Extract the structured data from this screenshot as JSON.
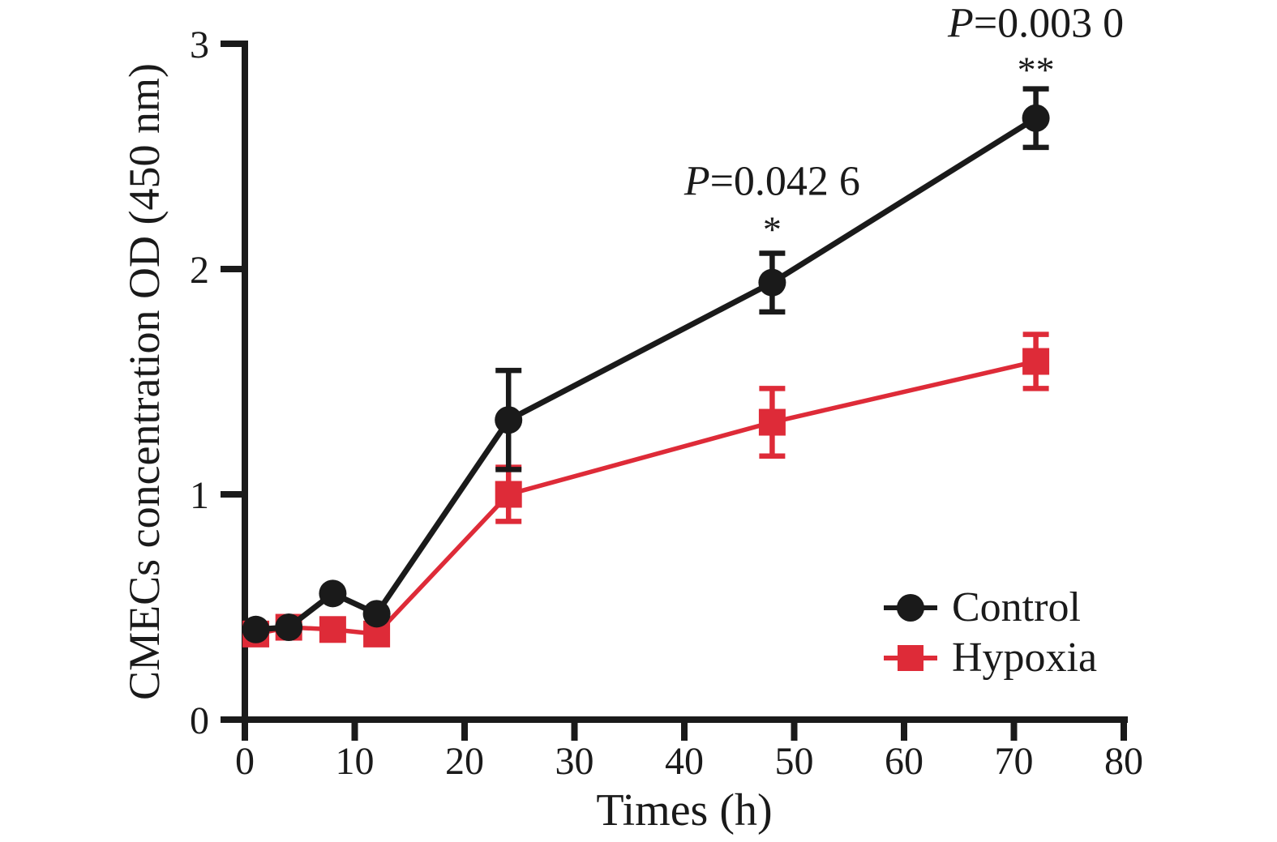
{
  "figure": {
    "background": "#ffffff",
    "text_color": "#1a1a1a"
  },
  "chart_data": {
    "type": "line",
    "title": "",
    "xlabel": "Times (h)",
    "ylabel": "CMECs concentration OD (450 nm)",
    "xlim": [
      0,
      80
    ],
    "ylim": [
      0,
      3
    ],
    "x_ticks": [
      0,
      10,
      20,
      30,
      40,
      50,
      60,
      70,
      80
    ],
    "y_ticks": [
      0,
      1,
      2,
      3
    ],
    "grid": false,
    "legend_position": "lower-right",
    "x": [
      1,
      4,
      8,
      12,
      24,
      48,
      72
    ],
    "series": [
      {
        "name": "Control",
        "color": "#1a1a1a",
        "marker": "circle",
        "values": [
          0.4,
          0.41,
          0.56,
          0.47,
          1.33,
          1.94,
          2.67
        ],
        "errors": [
          0,
          0,
          0,
          0,
          0.22,
          0.13,
          0.13
        ]
      },
      {
        "name": "Hypoxia",
        "color": "#de2b38",
        "marker": "square",
        "values": [
          0.38,
          0.41,
          0.4,
          0.38,
          1.0,
          1.32,
          1.59
        ],
        "errors": [
          0,
          0,
          0,
          0,
          0.12,
          0.15,
          0.12
        ]
      }
    ],
    "annotations": [
      {
        "italic_prefix": "P",
        "text": "=0.042 6",
        "stars": "*",
        "x": 48,
        "text_y": 2.33,
        "stars_y": 2.12
      },
      {
        "italic_prefix": "P",
        "text": "=0.003 0",
        "stars": "**",
        "x": 72,
        "text_y": 3.03,
        "stars_y": 2.83
      }
    ]
  },
  "legend": {
    "entries": [
      {
        "label": "Control",
        "series": "Control"
      },
      {
        "label": "Hypoxia",
        "series": "Hypoxia"
      }
    ]
  }
}
